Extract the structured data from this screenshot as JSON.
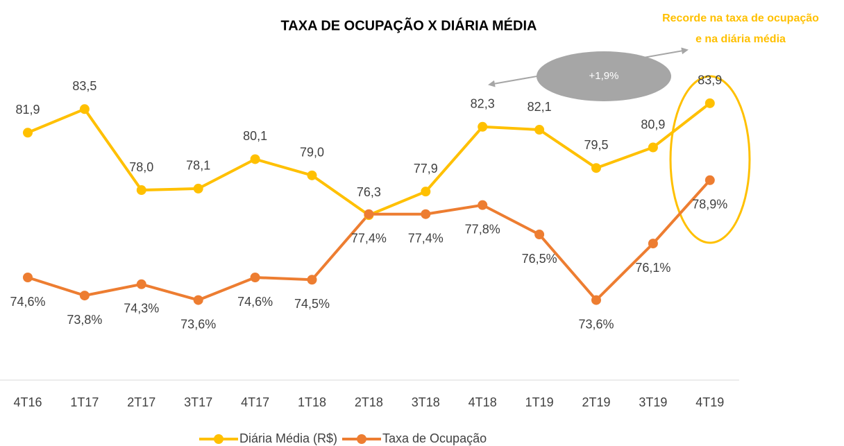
{
  "chart_data": {
    "type": "line",
    "title": "TAXA DE OCUPAÇÃO X DIÁRIA MÉDIA",
    "annotations": [
      "Recorde na taxa de ocupação",
      "e na diária média",
      "+1,9%"
    ],
    "categories": [
      "4T16",
      "1T17",
      "2T17",
      "3T17",
      "4T17",
      "1T18",
      "2T18",
      "3T18",
      "4T18",
      "1T19",
      "2T19",
      "3T19",
      "4T19"
    ],
    "series": [
      {
        "name": "Diária Média (R$)",
        "color": "#FFC000",
        "values": [
          81.9,
          83.5,
          78.0,
          78.1,
          80.1,
          79.0,
          76.3,
          77.9,
          82.3,
          82.1,
          79.5,
          80.9,
          83.9
        ],
        "value_labels": [
          "81,9",
          "83,5",
          "78,0",
          "78,1",
          "80,1",
          "79,0",
          "76,3",
          "77,9",
          "82,3",
          "82,1",
          "79,5",
          "80,9",
          "83,9"
        ]
      },
      {
        "name": "Taxa de Ocupação",
        "color": "#ED7D31",
        "axis": "y2",
        "values": [
          74.6,
          73.8,
          74.3,
          73.6,
          74.6,
          74.5,
          77.4,
          77.4,
          77.8,
          76.5,
          73.6,
          76.1,
          78.9
        ],
        "value_labels": [
          "74,6%",
          "73,8%",
          "74,3%",
          "73,6%",
          "74,6%",
          "74,5%",
          "77,4%",
          "77,4%",
          "77,8%",
          "76,5%",
          "73,6%",
          "76,1%",
          "78,9%"
        ]
      }
    ],
    "ylim": [
      65,
      86.2
    ],
    "y2lim": [
      70,
      83.8
    ],
    "legend": "bottom"
  }
}
